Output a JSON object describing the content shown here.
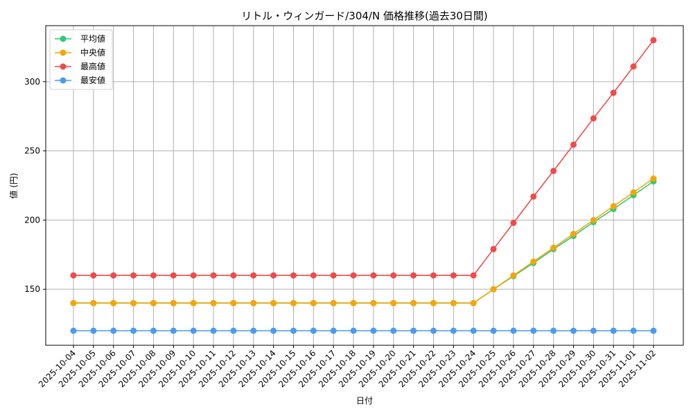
{
  "chart_data": {
    "type": "line",
    "title": "リトル・ウィンガード/304/N 価格推移(過去30日間)",
    "xlabel": "日付",
    "ylabel": "値 (円)",
    "ylim": [
      109.5,
      340.5
    ],
    "yticks": [
      150,
      200,
      250,
      300
    ],
    "grid": true,
    "legend_position": "upper left",
    "x": [
      "2025-10-04",
      "2025-10-05",
      "2025-10-06",
      "2025-10-07",
      "2025-10-08",
      "2025-10-09",
      "2025-10-10",
      "2025-10-11",
      "2025-10-12",
      "2025-10-13",
      "2025-10-14",
      "2025-10-15",
      "2025-10-16",
      "2025-10-17",
      "2025-10-18",
      "2025-10-19",
      "2025-10-20",
      "2025-10-21",
      "2025-10-22",
      "2025-10-23",
      "2025-10-24",
      "2025-10-25",
      "2025-10-26",
      "2025-10-27",
      "2025-10-28",
      "2025-10-29",
      "2025-10-30",
      "2025-10-31",
      "2025-11-01",
      "2025-11-02"
    ],
    "series": [
      {
        "name": "平均値",
        "color": "#2ecc71",
        "values": [
          140,
          140,
          140,
          140,
          140,
          140,
          140,
          140,
          140,
          140,
          140,
          140,
          140,
          140,
          140,
          140,
          140,
          140,
          140,
          140,
          140,
          150,
          159.5,
          169,
          179,
          188.5,
          198.5,
          208,
          218,
          228
        ]
      },
      {
        "name": "中央値",
        "color": "#f5a50a",
        "values": [
          140,
          140,
          140,
          140,
          140,
          140,
          140,
          140,
          140,
          140,
          140,
          140,
          140,
          140,
          140,
          140,
          140,
          140,
          140,
          140,
          140,
          150,
          160,
          170,
          180,
          190,
          200,
          210,
          220,
          230
        ]
      },
      {
        "name": "最高値",
        "color": "#f04a4a",
        "values": [
          160,
          160,
          160,
          160,
          160,
          160,
          160,
          160,
          160,
          160,
          160,
          160,
          160,
          160,
          160,
          160,
          160,
          160,
          160,
          160,
          160,
          179,
          198,
          217,
          235.5,
          254.5,
          273.5,
          292,
          311,
          330
        ]
      },
      {
        "name": "最安値",
        "color": "#4a9af0",
        "values": [
          120,
          120,
          120,
          120,
          120,
          120,
          120,
          120,
          120,
          120,
          120,
          120,
          120,
          120,
          120,
          120,
          120,
          120,
          120,
          120,
          120,
          120,
          120,
          120,
          120,
          120,
          120,
          120,
          120,
          120
        ]
      }
    ]
  }
}
